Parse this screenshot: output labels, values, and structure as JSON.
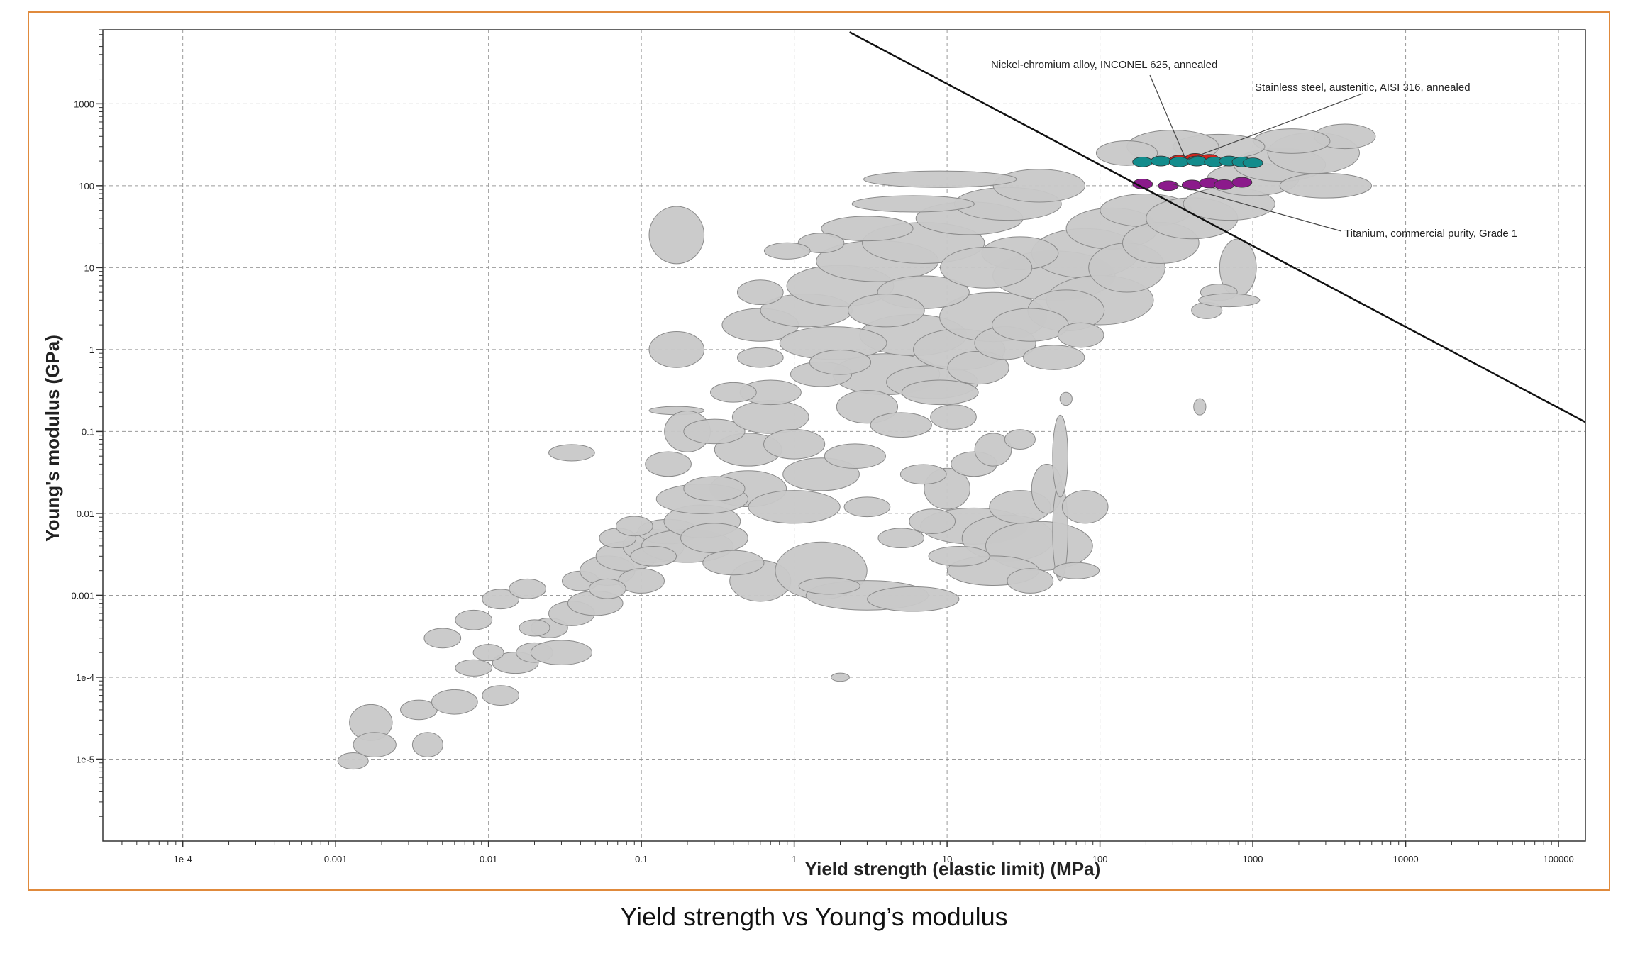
{
  "caption": "Yield strength vs Young’s modulus",
  "chart_data": {
    "type": "scatter",
    "marker_shape": "ellipse",
    "xlabel": "Yield strength (elastic limit) (MPa)",
    "ylabel": "Young's modulus (GPa)",
    "x_scale": "log",
    "y_scale": "log",
    "xlim": [
      3e-05,
      150000
    ],
    "ylim": [
      1e-06,
      8000
    ],
    "x_ticks": [
      "1e-4",
      "0.001",
      "0.01",
      "0.1",
      "1",
      "10",
      "100",
      "1000",
      "10000",
      "100000"
    ],
    "y_ticks": [
      "1e-5",
      "1e-4",
      "0.001",
      "0.01",
      "0.1",
      "1",
      "10",
      "100",
      "1000"
    ],
    "grid": true,
    "colors": {
      "bubble_fill": "#c8c8c8",
      "bubble_stroke": "#8a8a8a",
      "inconel": "#d0261e",
      "stainless": "#138c8c",
      "titanium": "#8b1a8b",
      "frame": "#e08a3c",
      "guide_line": "#111111"
    },
    "guide_line": {
      "points": [
        [
          2.3,
          7500
        ],
        [
          150000,
          0.13
        ]
      ]
    },
    "annotations": [
      {
        "text": "Nickel-chromium alloy, INCONEL 625, annealed",
        "x": 360,
        "y": 220
      },
      {
        "text": "Stainless steel, austenitic, AISI 316, annealed",
        "x": 380,
        "y": 210
      },
      {
        "text": "Titanium, commercial purity, Grade 1",
        "x": 300,
        "y": 105
      }
    ],
    "highlighted_series": [
      {
        "name": "Nickel-chromium alloy, INCONEL 625, annealed",
        "color_key": "inconel",
        "points": [
          [
            330,
            205
          ],
          [
            420,
            215
          ],
          [
            520,
            210
          ]
        ]
      },
      {
        "name": "Stainless steel, austenitic, AISI 316, annealed",
        "color_key": "stainless",
        "points": [
          [
            190,
            195
          ],
          [
            250,
            200
          ],
          [
            330,
            195
          ],
          [
            430,
            200
          ],
          [
            560,
            195
          ],
          [
            700,
            200
          ],
          [
            850,
            195
          ],
          [
            1000,
            190
          ]
        ]
      },
      {
        "name": "Titanium, commercial purity, Grade 1",
        "color_key": "titanium",
        "points": [
          [
            190,
            105
          ],
          [
            280,
            100
          ],
          [
            400,
            102
          ],
          [
            520,
            108
          ],
          [
            650,
            103
          ],
          [
            850,
            110
          ]
        ]
      }
    ],
    "bubbles": [
      [
        0.17,
        25,
        0.18,
        0.35
      ],
      [
        0.17,
        1.0,
        0.18,
        0.22
      ],
      [
        0.17,
        0.18,
        0.18,
        0.05
      ],
      [
        0.035,
        0.055,
        0.15,
        0.1
      ],
      [
        0.0017,
        2.8e-05,
        0.14,
        0.22
      ],
      [
        0.0018,
        1.5e-05,
        0.14,
        0.15
      ],
      [
        0.0013,
        9.5e-06,
        0.1,
        0.1
      ],
      [
        0.004,
        1.5e-05,
        0.1,
        0.15
      ],
      [
        0.0035,
        4e-05,
        0.12,
        0.12
      ],
      [
        0.006,
        5e-05,
        0.15,
        0.15
      ],
      [
        0.008,
        0.00013,
        0.12,
        0.1
      ],
      [
        0.012,
        6e-05,
        0.12,
        0.12
      ],
      [
        0.015,
        0.00015,
        0.15,
        0.13
      ],
      [
        0.02,
        0.0002,
        0.12,
        0.12
      ],
      [
        0.03,
        0.0002,
        0.2,
        0.15
      ],
      [
        0.025,
        0.0004,
        0.12,
        0.12
      ],
      [
        0.035,
        0.0006,
        0.15,
        0.15
      ],
      [
        0.05,
        0.0008,
        0.18,
        0.15
      ],
      [
        0.04,
        0.0015,
        0.12,
        0.12
      ],
      [
        0.06,
        0.002,
        0.18,
        0.18
      ],
      [
        0.08,
        0.003,
        0.2,
        0.18
      ],
      [
        0.1,
        0.0015,
        0.15,
        0.15
      ],
      [
        0.12,
        0.004,
        0.2,
        0.2
      ],
      [
        0.15,
        0.006,
        0.2,
        0.15
      ],
      [
        0.2,
        0.004,
        0.3,
        0.2
      ],
      [
        0.25,
        0.008,
        0.25,
        0.2
      ],
      [
        0.3,
        0.005,
        0.22,
        0.18
      ],
      [
        0.07,
        0.005,
        0.12,
        0.12
      ],
      [
        0.09,
        0.007,
        0.12,
        0.12
      ],
      [
        0.005,
        0.0003,
        0.12,
        0.12
      ],
      [
        0.008,
        0.0005,
        0.12,
        0.12
      ],
      [
        0.01,
        0.0002,
        0.1,
        0.1
      ],
      [
        0.012,
        0.0009,
        0.12,
        0.12
      ],
      [
        0.018,
        0.0012,
        0.12,
        0.12
      ],
      [
        0.02,
        0.0004,
        0.1,
        0.1
      ],
      [
        0.6,
        0.0015,
        0.2,
        0.25
      ],
      [
        1.5,
        0.002,
        0.3,
        0.35
      ],
      [
        3,
        0.001,
        0.4,
        0.18
      ],
      [
        6,
        0.0009,
        0.3,
        0.15
      ],
      [
        2,
        0.0001,
        0.06,
        0.05
      ],
      [
        1.7,
        0.0013,
        0.2,
        0.1
      ],
      [
        0.5,
        0.02,
        0.25,
        0.22
      ],
      [
        0.5,
        0.06,
        0.22,
        0.2
      ],
      [
        0.2,
        0.1,
        0.15,
        0.25
      ],
      [
        0.15,
        0.04,
        0.15,
        0.15
      ],
      [
        0.3,
        0.1,
        0.2,
        0.15
      ],
      [
        1.5,
        0.03,
        0.25,
        0.2
      ],
      [
        1,
        0.012,
        0.3,
        0.2
      ],
      [
        2.5,
        0.05,
        0.2,
        0.15
      ],
      [
        0.7,
        0.15,
        0.25,
        0.2
      ],
      [
        1,
        0.07,
        0.2,
        0.18
      ],
      [
        15,
        0.007,
        0.35,
        0.22
      ],
      [
        25,
        0.005,
        0.3,
        0.28
      ],
      [
        40,
        0.004,
        0.35,
        0.3
      ],
      [
        20,
        0.002,
        0.3,
        0.18
      ],
      [
        10,
        0.02,
        0.15,
        0.25
      ],
      [
        15,
        0.04,
        0.15,
        0.15
      ],
      [
        30,
        0.012,
        0.2,
        0.2
      ],
      [
        45,
        0.02,
        0.1,
        0.3
      ],
      [
        55,
        0.006,
        0.05,
        0.6
      ],
      [
        55,
        0.05,
        0.05,
        0.5
      ],
      [
        70,
        0.002,
        0.15,
        0.1
      ],
      [
        80,
        0.012,
        0.15,
        0.2
      ],
      [
        450,
        0.2,
        0.04,
        0.1
      ],
      [
        60,
        0.25,
        0.04,
        0.08
      ],
      [
        4,
        0.5,
        0.35,
        0.25
      ],
      [
        8,
        0.4,
        0.3,
        0.2
      ],
      [
        3,
        0.2,
        0.2,
        0.2
      ],
      [
        6,
        1.5,
        0.35,
        0.25
      ],
      [
        12,
        1,
        0.3,
        0.25
      ],
      [
        20,
        2.5,
        0.35,
        0.3
      ],
      [
        0.6,
        2,
        0.25,
        0.2
      ],
      [
        1.2,
        3,
        0.3,
        0.2
      ],
      [
        2,
        6,
        0.35,
        0.25
      ],
      [
        3.5,
        12,
        0.4,
        0.25
      ],
      [
        7,
        20,
        0.4,
        0.25
      ],
      [
        14,
        40,
        0.35,
        0.2
      ],
      [
        25,
        60,
        0.35,
        0.2
      ],
      [
        40,
        100,
        0.3,
        0.2
      ],
      [
        50,
        8,
        0.4,
        0.3
      ],
      [
        80,
        15,
        0.35,
        0.3
      ],
      [
        120,
        30,
        0.3,
        0.25
      ],
      [
        200,
        50,
        0.3,
        0.2
      ],
      [
        100,
        4,
        0.35,
        0.3
      ],
      [
        60,
        3,
        0.25,
        0.25
      ],
      [
        30,
        15,
        0.25,
        0.2
      ],
      [
        150,
        10,
        0.25,
        0.3
      ],
      [
        250,
        20,
        0.25,
        0.25
      ],
      [
        400,
        40,
        0.3,
        0.25
      ],
      [
        700,
        60,
        0.3,
        0.2
      ],
      [
        1000,
        120,
        0.3,
        0.2
      ],
      [
        1500,
        180,
        0.3,
        0.2
      ],
      [
        2500,
        250,
        0.3,
        0.25
      ],
      [
        4000,
        400,
        0.2,
        0.15
      ],
      [
        3000,
        100,
        0.3,
        0.15
      ],
      [
        1800,
        350,
        0.25,
        0.15
      ],
      [
        600,
        300,
        0.3,
        0.15
      ],
      [
        300,
        300,
        0.3,
        0.2
      ],
      [
        150,
        250,
        0.2,
        0.15
      ],
      [
        800,
        10,
        0.12,
        0.35
      ],
      [
        600,
        5,
        0.12,
        0.1
      ],
      [
        500,
        3,
        0.1,
        0.1
      ],
      [
        700,
        4,
        0.2,
        0.08
      ],
      [
        9,
        120,
        0.5,
        0.1
      ],
      [
        6,
        60,
        0.4,
        0.1
      ],
      [
        3,
        30,
        0.3,
        0.15
      ],
      [
        1.5,
        20,
        0.15,
        0.12
      ],
      [
        0.9,
        16,
        0.15,
        0.1
      ],
      [
        0.6,
        5,
        0.15,
        0.15
      ],
      [
        1.8,
        1.2,
        0.35,
        0.2
      ],
      [
        1.5,
        0.5,
        0.2,
        0.15
      ],
      [
        0.6,
        0.8,
        0.15,
        0.12
      ],
      [
        7,
        5,
        0.3,
        0.2
      ],
      [
        4,
        3,
        0.25,
        0.2
      ],
      [
        18,
        10,
        0.3,
        0.25
      ],
      [
        0.25,
        0.015,
        0.3,
        0.18
      ],
      [
        0.7,
        0.3,
        0.2,
        0.15
      ],
      [
        0.4,
        0.3,
        0.15,
        0.12
      ],
      [
        2,
        0.7,
        0.2,
        0.15
      ],
      [
        5,
        0.12,
        0.2,
        0.15
      ],
      [
        9,
        0.3,
        0.25,
        0.15
      ],
      [
        11,
        0.15,
        0.15,
        0.15
      ],
      [
        16,
        0.6,
        0.2,
        0.2
      ],
      [
        24,
        1.2,
        0.2,
        0.2
      ],
      [
        35,
        2,
        0.25,
        0.2
      ],
      [
        50,
        0.8,
        0.2,
        0.15
      ],
      [
        75,
        1.5,
        0.15,
        0.15
      ],
      [
        0.12,
        0.003,
        0.15,
        0.12
      ],
      [
        0.4,
        0.0025,
        0.2,
        0.15
      ],
      [
        0.3,
        0.02,
        0.2,
        0.15
      ],
      [
        0.06,
        0.0012,
        0.12,
        0.12
      ],
      [
        5,
        0.005,
        0.15,
        0.12
      ],
      [
        8,
        0.008,
        0.15,
        0.15
      ],
      [
        12,
        0.003,
        0.2,
        0.12
      ],
      [
        35,
        0.0015,
        0.15,
        0.15
      ],
      [
        20,
        0.06,
        0.12,
        0.2
      ],
      [
        30,
        0.08,
        0.1,
        0.12
      ],
      [
        3,
        0.012,
        0.15,
        0.12
      ],
      [
        7,
        0.03,
        0.15,
        0.12
      ]
    ]
  }
}
